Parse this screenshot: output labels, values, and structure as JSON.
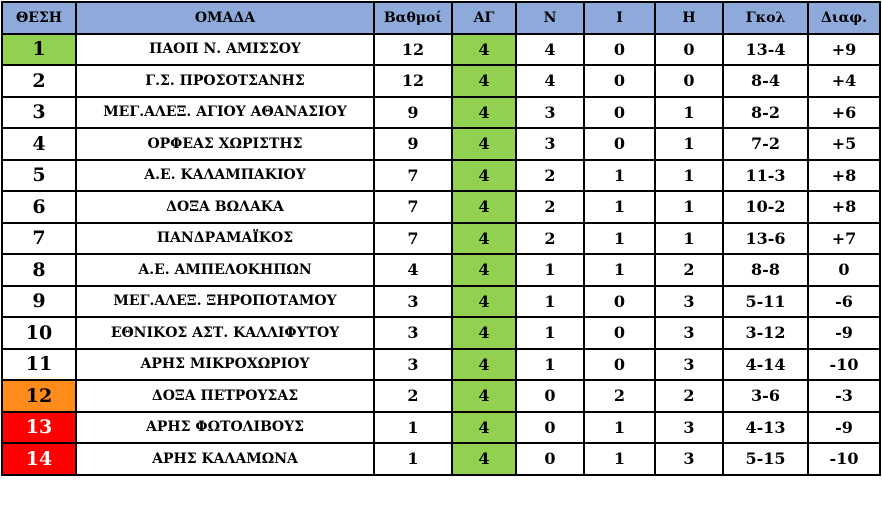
{
  "header": {
    "pos": "ΘΕΣΗ",
    "team": "ΟΜΑΔΑ",
    "points": "Βαθμοί",
    "played": "ΑΓ",
    "wins": "Ν",
    "draws": "Ι",
    "losses": "Η",
    "goals": "Γκολ",
    "diff": "Διαφ."
  },
  "colors": {
    "header_bg": "#8eaadb",
    "played_bg": "#92d050",
    "pos_promotion": "#92d050",
    "pos_playout": "#ff8c1a",
    "pos_relegation": "#ff0000"
  },
  "rows": [
    {
      "pos": "1",
      "team": "ΠΑΟΠ Ν. ΑΜΙΣΣΟΥ",
      "points": "12",
      "played": "4",
      "wins": "4",
      "draws": "0",
      "losses": "0",
      "goals": "13-4",
      "diff": "+9",
      "status": "promotion"
    },
    {
      "pos": "2",
      "team": "Γ.Σ. ΠΡΟΣΟΤΣΑΝΗΣ",
      "points": "12",
      "played": "4",
      "wins": "4",
      "draws": "0",
      "losses": "0",
      "goals": "8-4",
      "diff": "+4",
      "status": ""
    },
    {
      "pos": "3",
      "team": "ΜΕΓ.ΑΛΕΞ. ΑΓΙΟΥ ΑΘΑΝΑΣΙΟΥ",
      "points": "9",
      "played": "4",
      "wins": "3",
      "draws": "0",
      "losses": "1",
      "goals": "8-2",
      "diff": "+6",
      "status": ""
    },
    {
      "pos": "4",
      "team": "ΟΡΦΕΑΣ ΧΩΡΙΣΤΗΣ",
      "points": "9",
      "played": "4",
      "wins": "3",
      "draws": "0",
      "losses": "1",
      "goals": "7-2",
      "diff": "+5",
      "status": ""
    },
    {
      "pos": "5",
      "team": "Α.Ε. ΚΑΛΑΜΠΑΚΙΟΥ",
      "points": "7",
      "played": "4",
      "wins": "2",
      "draws": "1",
      "losses": "1",
      "goals": "11-3",
      "diff": "+8",
      "status": ""
    },
    {
      "pos": "6",
      "team": "ΔΟΞΑ ΒΩΛΑΚΑ",
      "points": "7",
      "played": "4",
      "wins": "2",
      "draws": "1",
      "losses": "1",
      "goals": "10-2",
      "diff": "+8",
      "status": ""
    },
    {
      "pos": "7",
      "team": "ΠΑΝΔΡΑΜΑΪΚΟΣ",
      "points": "7",
      "played": "4",
      "wins": "2",
      "draws": "1",
      "losses": "1",
      "goals": "13-6",
      "diff": "+7",
      "status": ""
    },
    {
      "pos": "8",
      "team": "Α.Ε. ΑΜΠΕΛΟΚΗΠΩΝ",
      "points": "4",
      "played": "4",
      "wins": "1",
      "draws": "1",
      "losses": "2",
      "goals": "8-8",
      "diff": "0",
      "status": ""
    },
    {
      "pos": "9",
      "team": "ΜΕΓ.ΑΛΕΞ. ΞΗΡΟΠΟΤΑΜΟΥ",
      "points": "3",
      "played": "4",
      "wins": "1",
      "draws": "0",
      "losses": "3",
      "goals": "5-11",
      "diff": "-6",
      "status": ""
    },
    {
      "pos": "10",
      "team": "ΕΘΝΙΚΟΣ ΑΣΤ. ΚΑΛΛΙΦΥΤΟΥ",
      "points": "3",
      "played": "4",
      "wins": "1",
      "draws": "0",
      "losses": "3",
      "goals": "3-12",
      "diff": "-9",
      "status": ""
    },
    {
      "pos": "11",
      "team": "ΑΡΗΣ ΜΙΚΡΟΧΩΡΙΟΥ",
      "points": "3",
      "played": "4",
      "wins": "1",
      "draws": "0",
      "losses": "3",
      "goals": "4-14",
      "diff": "-10",
      "status": ""
    },
    {
      "pos": "12",
      "team": "ΔΟΞΑ ΠΕΤΡΟΥΣΑΣ",
      "points": "2",
      "played": "4",
      "wins": "0",
      "draws": "2",
      "losses": "2",
      "goals": "3-6",
      "diff": "-3",
      "status": "playout"
    },
    {
      "pos": "13",
      "team": "ΑΡΗΣ ΦΩΤΟΛΙΒΟΥΣ",
      "points": "1",
      "played": "4",
      "wins": "0",
      "draws": "1",
      "losses": "3",
      "goals": "4-13",
      "diff": "-9",
      "status": "relegation"
    },
    {
      "pos": "14",
      "team": "ΑΡΗΣ ΚΑΛΑΜΩΝΑ",
      "points": "1",
      "played": "4",
      "wins": "0",
      "draws": "1",
      "losses": "3",
      "goals": "5-15",
      "diff": "-10",
      "status": "relegation"
    }
  ]
}
